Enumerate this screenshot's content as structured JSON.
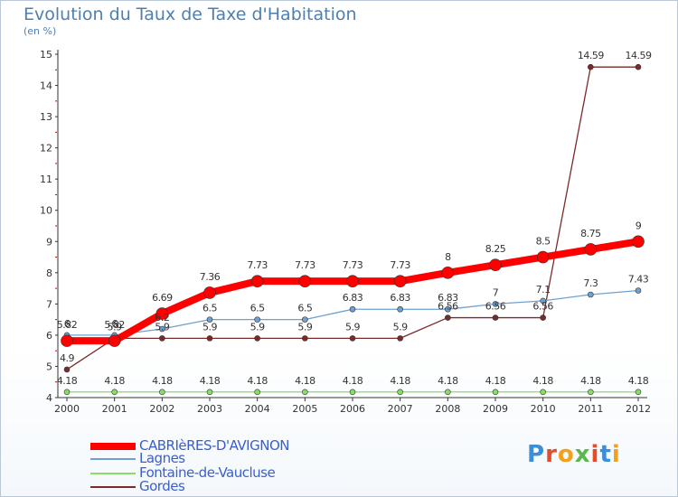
{
  "chart_data": {
    "type": "line",
    "title": "Evolution du Taux de Taxe d'Habitation",
    "subtitle": "(en %)",
    "x": [
      "2000",
      "2001",
      "2002",
      "2003",
      "2004",
      "2005",
      "2006",
      "2007",
      "2008",
      "2009",
      "2010",
      "2011",
      "2012"
    ],
    "ylim": [
      4,
      15
    ],
    "yticks": [
      "4",
      "5",
      "6",
      "7",
      "8",
      "9",
      "10",
      "11",
      "12",
      "13",
      "14",
      "15"
    ],
    "grid": false,
    "legend_position": "bottom-left",
    "series": [
      {
        "name": "CABRIèRES-D'AVIGNON",
        "color": "#ff0000",
        "values": [
          5.82,
          5.82,
          6.69,
          7.36,
          7.73,
          7.73,
          7.73,
          7.73,
          8,
          8.25,
          8.5,
          8.75,
          9
        ],
        "labels": [
          "5.82",
          "5.82",
          "6.69",
          "7.36",
          "7.73",
          "7.73",
          "7.73",
          "7.73",
          "8",
          "8.25",
          "8.5",
          "8.75",
          "9"
        ]
      },
      {
        "name": "Lagnes",
        "color": "#6fa0d0",
        "values": [
          6,
          6,
          6.2,
          6.5,
          6.5,
          6.5,
          6.83,
          6.83,
          6.83,
          7,
          7.1,
          7.3,
          7.43
        ],
        "labels": [
          "6",
          "6",
          "6.2",
          "6.5",
          "6.5",
          "6.5",
          "6.83",
          "6.83",
          "6.83",
          "7",
          "7.1",
          "7.3",
          "7.43"
        ]
      },
      {
        "name": "Fontaine-de-Vaucluse",
        "color": "#88dd66",
        "values": [
          4.18,
          4.18,
          4.18,
          4.18,
          4.18,
          4.18,
          4.18,
          4.18,
          4.18,
          4.18,
          4.18,
          4.18,
          4.18
        ],
        "labels": [
          "4.18",
          "4.18",
          "4.18",
          "4.18",
          "4.18",
          "4.18",
          "4.18",
          "4.18",
          "4.18",
          "4.18",
          "4.18",
          "4.18",
          "4.18"
        ]
      },
      {
        "name": "Gordes",
        "color": "#7a2a2a",
        "values": [
          4.9,
          5.9,
          5.9,
          5.9,
          5.9,
          5.9,
          5.9,
          5.9,
          6.56,
          6.56,
          6.56,
          14.59,
          14.59
        ],
        "labels": [
          "4.9",
          "5.9",
          "5.9",
          "5.9",
          "5.9",
          "5.9",
          "5.9",
          "5.9",
          "6.56",
          "6.56",
          "6.56",
          "14.59",
          "14.59"
        ]
      }
    ]
  },
  "logo": {
    "text": "Proxiti"
  }
}
